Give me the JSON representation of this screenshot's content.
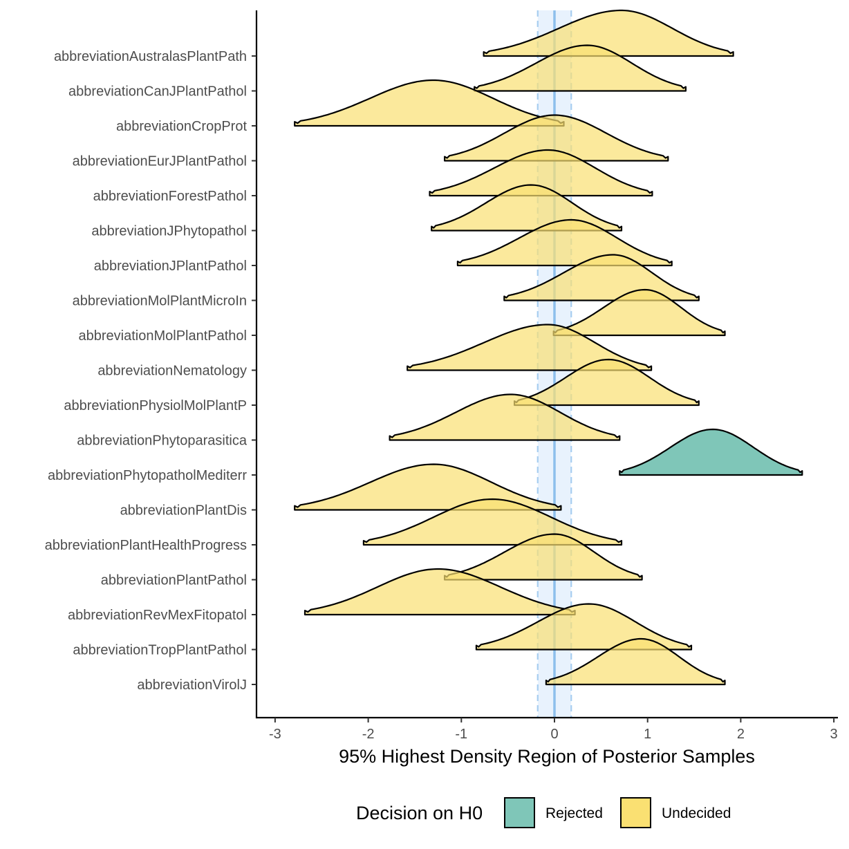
{
  "chart_data": {
    "type": "ridgeline",
    "xlabel": "95% Highest Density Region of Posterior Samples",
    "ylabel": "",
    "xlim": [
      -3.2,
      3.05
    ],
    "xticks": [
      -3,
      -2,
      -1,
      0,
      1,
      2,
      3
    ],
    "rope": [
      -0.18,
      0.18
    ],
    "reference_line": 0,
    "categories": [
      "abbreviationAustralasPlantPath",
      "abbreviationCanJPlantPathol",
      "abbreviationCropProt",
      "abbreviationEurJPlantPathol",
      "abbreviationForestPathol",
      "abbreviationJPhytopathol",
      "abbreviationJPlantPathol",
      "abbreviationMolPlantMicroIn",
      "abbreviationMolPlantPathol",
      "abbreviationNematology",
      "abbreviationPhysiolMolPlantP",
      "abbreviationPhytoparasitica",
      "abbreviationPhytopatholMediterr",
      "abbreviationPlantDis",
      "abbreviationPlantHealthProgress",
      "abbreviationPlantPathol",
      "abbreviationRevMexFitopatol",
      "abbreviationTropPlantPathol",
      "abbreviationVirolJ"
    ],
    "series": [
      {
        "category": "abbreviationAustralasPlantPath",
        "hdr_low": -0.76,
        "hdr_high": 1.92,
        "mode": 0.72,
        "decision": "Undecided"
      },
      {
        "category": "abbreviationCanJPlantPathol",
        "hdr_low": -0.86,
        "hdr_high": 1.41,
        "mode": 0.35,
        "decision": "Undecided"
      },
      {
        "category": "abbreviationCropProt",
        "hdr_low": -2.79,
        "hdr_high": 0.1,
        "mode": -1.3,
        "decision": "Undecided"
      },
      {
        "category": "abbreviationEurJPlantPathol",
        "hdr_low": -1.18,
        "hdr_high": 1.22,
        "mode": 0.0,
        "decision": "Undecided"
      },
      {
        "category": "abbreviationForestPathol",
        "hdr_low": -1.34,
        "hdr_high": 1.05,
        "mode": -0.07,
        "decision": "Undecided"
      },
      {
        "category": "abbreviationJPhytopathol",
        "hdr_low": -1.32,
        "hdr_high": 0.72,
        "mode": -0.25,
        "decision": "Undecided"
      },
      {
        "category": "abbreviationJPlantPathol",
        "hdr_low": -1.04,
        "hdr_high": 1.26,
        "mode": 0.18,
        "decision": "Undecided"
      },
      {
        "category": "abbreviationMolPlantMicroIn",
        "hdr_low": -0.54,
        "hdr_high": 1.55,
        "mode": 0.63,
        "decision": "Undecided"
      },
      {
        "category": "abbreviationMolPlantPathol",
        "hdr_low": -0.01,
        "hdr_high": 1.83,
        "mode": 0.97,
        "decision": "Undecided"
      },
      {
        "category": "abbreviationNematology",
        "hdr_low": -1.58,
        "hdr_high": 1.04,
        "mode": -0.07,
        "decision": "Undecided"
      },
      {
        "category": "abbreviationPhysiolMolPlantP",
        "hdr_low": -0.43,
        "hdr_high": 1.55,
        "mode": 0.58,
        "decision": "Undecided"
      },
      {
        "category": "abbreviationPhytoparasitica",
        "hdr_low": -1.77,
        "hdr_high": 0.7,
        "mode": -0.47,
        "decision": "Undecided"
      },
      {
        "category": "abbreviationPhytopatholMediterr",
        "hdr_low": 0.7,
        "hdr_high": 2.66,
        "mode": 1.7,
        "decision": "Rejected"
      },
      {
        "category": "abbreviationPlantDis",
        "hdr_low": -2.79,
        "hdr_high": 0.07,
        "mode": -1.3,
        "decision": "Undecided"
      },
      {
        "category": "abbreviationPlantHealthProgress",
        "hdr_low": -2.05,
        "hdr_high": 0.72,
        "mode": -0.67,
        "decision": "Undecided"
      },
      {
        "category": "abbreviationPlantPathol",
        "hdr_low": -1.18,
        "hdr_high": 0.94,
        "mode": 0.0,
        "decision": "Undecided"
      },
      {
        "category": "abbreviationRevMexFitopatol",
        "hdr_low": -2.68,
        "hdr_high": 0.22,
        "mode": -1.25,
        "decision": "Undecided"
      },
      {
        "category": "abbreviationTropPlantPathol",
        "hdr_low": -0.84,
        "hdr_high": 1.47,
        "mode": 0.37,
        "decision": "Undecided"
      },
      {
        "category": "abbreviationVirolJ",
        "hdr_low": -0.09,
        "hdr_high": 1.83,
        "mode": 0.93,
        "decision": "Undecided"
      }
    ],
    "legend": {
      "title": "Decision on H0",
      "position": "bottom",
      "items": [
        {
          "label": "Rejected",
          "color": "#7fc6b8"
        },
        {
          "label": "Undecided",
          "color": "#fae072"
        }
      ]
    },
    "colors": {
      "rope_band": "#d6e8fb",
      "rope_line": "#a7cdf0",
      "zero_line": "#8dbfec",
      "outline": "#000000"
    },
    "grid": false
  }
}
